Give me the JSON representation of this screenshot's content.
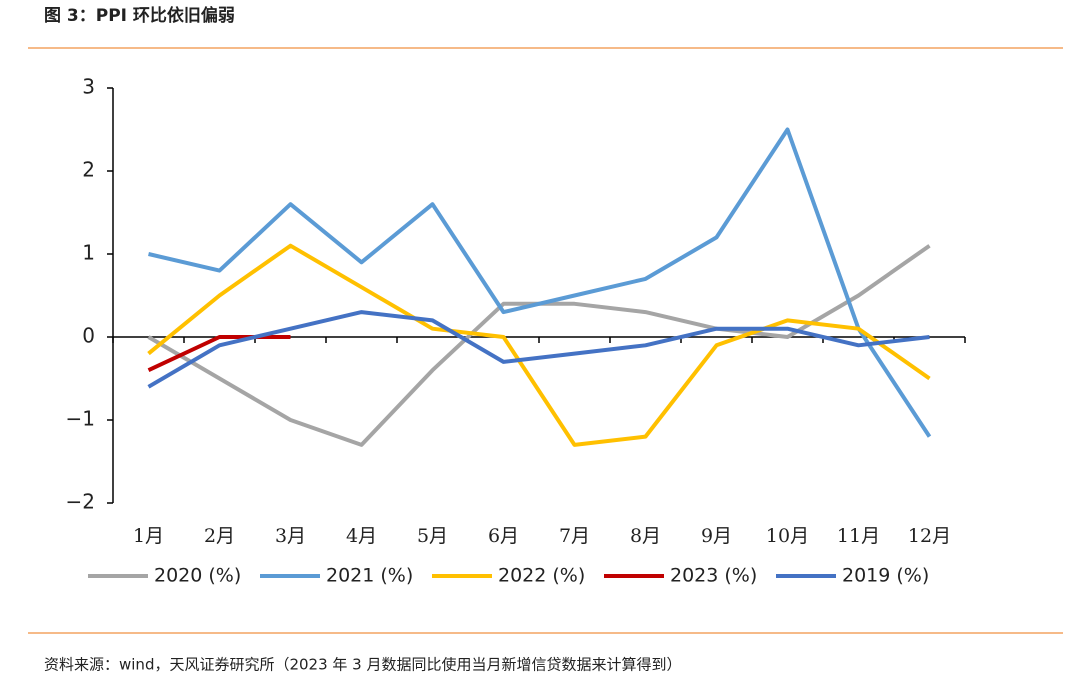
{
  "chart_data": {
    "type": "line",
    "title": "图 3：PPI 环比依旧偏弱",
    "note": "资料来源：wind，天风证券研究所（2023 年 3 月数据同比使用当月新增信贷数据来计算得到）",
    "categories": [
      "1月",
      "2月",
      "3月",
      "4月",
      "5月",
      "6月",
      "7月",
      "8月",
      "9月",
      "10月",
      "11月",
      "12月"
    ],
    "series": [
      {
        "name": "2020 (%)",
        "color": "#a5a5a5",
        "values": [
          0,
          -0.5,
          -1.0,
          -1.3,
          -0.4,
          0.4,
          0.4,
          0.3,
          0.1,
          0.0,
          0.5,
          1.1
        ]
      },
      {
        "name": "2021 (%)",
        "color": "#5b9bd5",
        "values": [
          1.0,
          0.8,
          1.6,
          0.9,
          1.6,
          0.3,
          0.5,
          0.7,
          1.2,
          2.5,
          0.1,
          -1.2
        ]
      },
      {
        "name": "2022 (%)",
        "color": "#ffc000",
        "values": [
          -0.2,
          0.5,
          1.1,
          0.6,
          0.1,
          0.0,
          -1.3,
          -1.2,
          -0.1,
          0.2,
          0.1,
          -0.5
        ]
      },
      {
        "name": "2023 (%)",
        "color": "#c00000",
        "values": [
          -0.4,
          0.0,
          0.0,
          null,
          null,
          null,
          null,
          null,
          null,
          null,
          null,
          null
        ]
      },
      {
        "name": "2019 (%)",
        "color": "#4472c4",
        "values": [
          -0.6,
          -0.1,
          0.1,
          0.3,
          0.2,
          -0.3,
          -0.2,
          -0.1,
          0.1,
          0.1,
          -0.1,
          0.0
        ]
      }
    ],
    "ylim": [
      -2,
      3
    ],
    "yticks": [
      {
        "value": -2,
        "label": "−2"
      },
      {
        "value": -1,
        "label": "−1"
      },
      0,
      1,
      2,
      3
    ],
    "legend": "bottom"
  }
}
